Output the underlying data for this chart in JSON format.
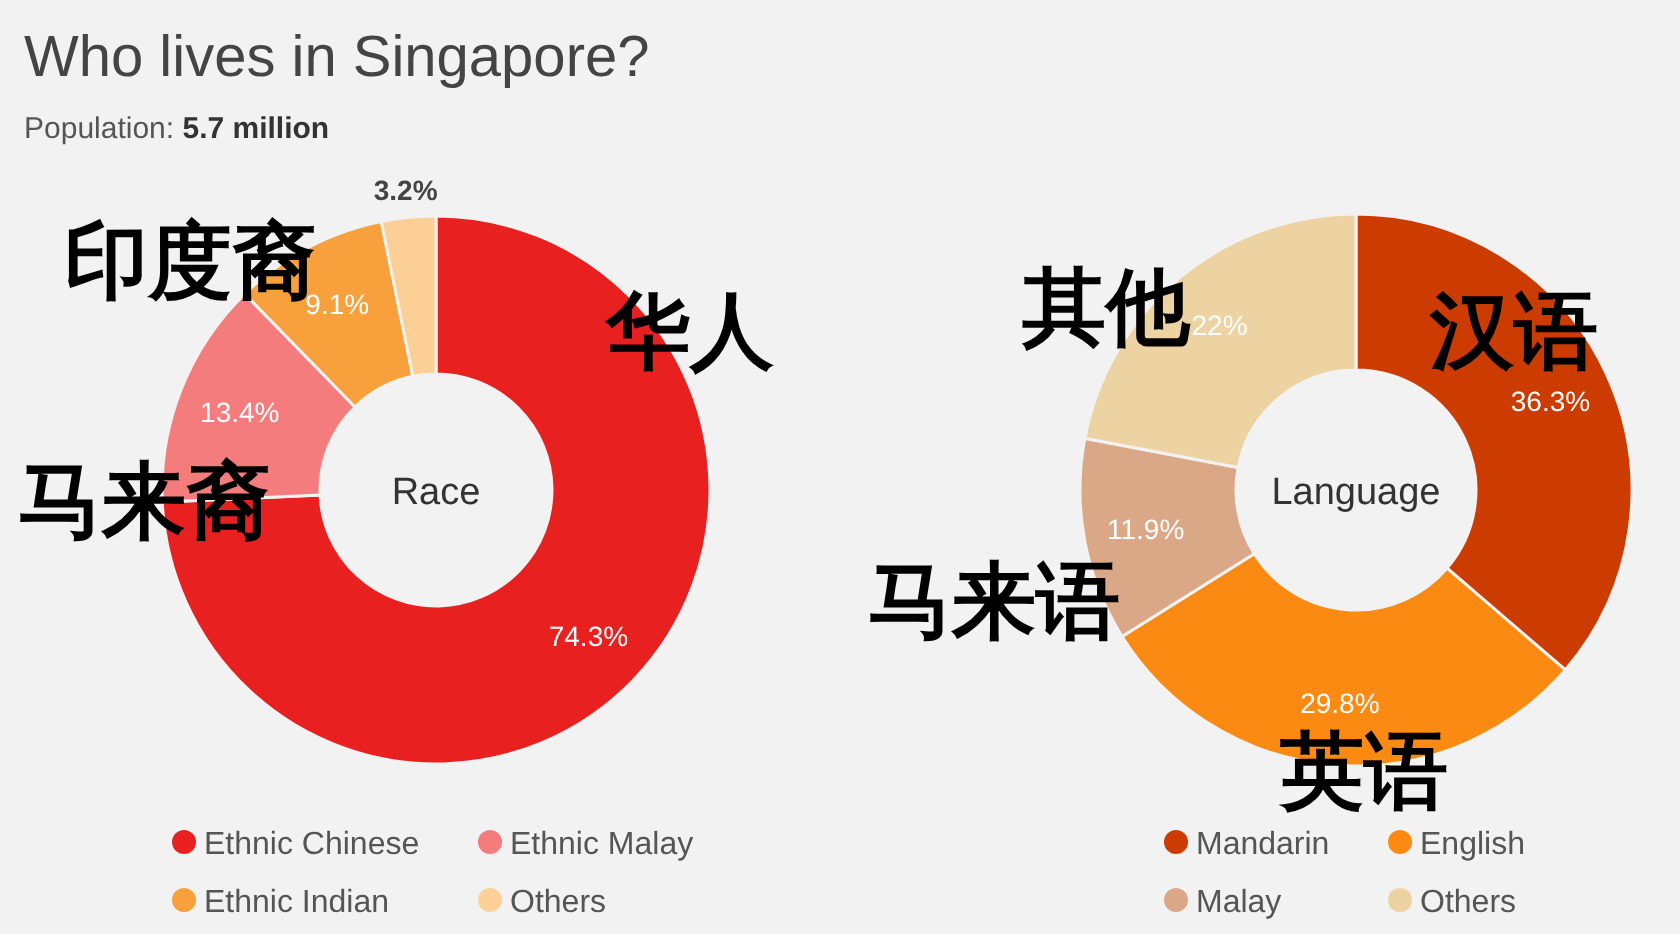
{
  "chart_data": [
    {
      "type": "donut",
      "title": "Who lives in Singapore?",
      "subtitle": "Population: 5.7 million",
      "categories": [
        "Ethnic Chinese",
        "Ethnic Malay",
        "Ethnic Indian",
        "Others"
      ],
      "values": [
        74.3,
        13.4,
        9.1,
        3.2
      ],
      "colors": [
        "#e8201f",
        "#f47c7c",
        "#f7a03c",
        "#fbcf95"
      ],
      "value_labels": [
        "74.3%",
        "13.4%",
        "9.1%",
        "3.2%"
      ],
      "legend": "bottom",
      "annotations": [
        "Race",
        "华人",
        "马来裔",
        "印度裔"
      ]
    },
    {
      "type": "donut",
      "categories": [
        "Mandarin",
        "English",
        "Malay",
        "Others"
      ],
      "values": [
        36.3,
        29.8,
        11.9,
        22
      ],
      "colors": [
        "#cc3b00",
        "#fb8a13",
        "#dba887",
        "#ecd3a1"
      ],
      "value_labels": [
        "36.3%",
        "29.8%",
        "11.9%",
        "22%"
      ],
      "legend": "bottom",
      "annotations": [
        "Language",
        "汉语",
        "英语",
        "马来语",
        "其他"
      ]
    }
  ]
}
